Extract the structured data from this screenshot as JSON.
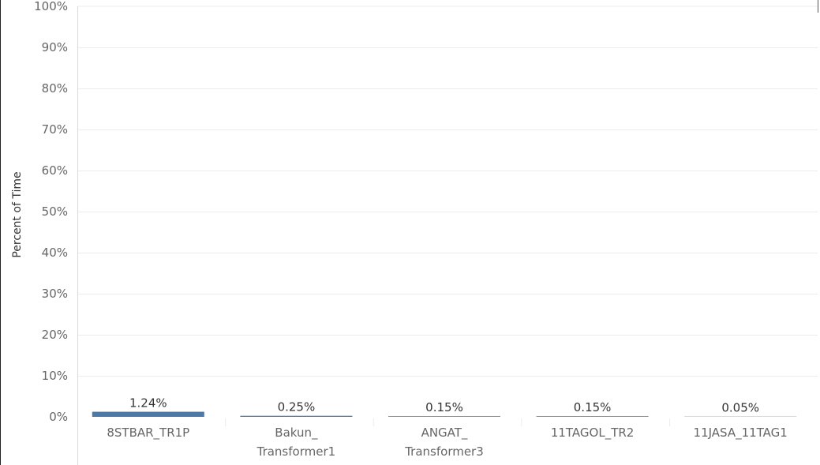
{
  "chart_data": {
    "type": "bar",
    "categories": [
      [
        "8STBAR_TR1P"
      ],
      [
        "Bakun_",
        "Transformer1"
      ],
      [
        "ANGAT_",
        "Transformer3"
      ],
      [
        "11TAGOL_TR2"
      ],
      [
        "11JASA_11TAG1"
      ]
    ],
    "values": [
      1.24,
      0.25,
      0.15,
      0.15,
      0.05
    ],
    "data_labels": [
      "1.24%",
      "0.25%",
      "0.15%",
      "0.15%",
      "0.05%"
    ],
    "ylabel": "Percent of Time",
    "xlabel": "",
    "ylim": [
      0,
      100
    ],
    "y_ticks": [
      0,
      10,
      20,
      30,
      40,
      50,
      60,
      70,
      80,
      90,
      100
    ],
    "y_tick_labels": [
      "0%",
      "10%",
      "20%",
      "30%",
      "40%",
      "50%",
      "60%",
      "70%",
      "80%",
      "90%",
      "100%"
    ],
    "grid": true,
    "legend": "none",
    "colors": {
      "bar": "#4e79a7",
      "grid": "#ececec",
      "axis": "#d9d9d9"
    }
  }
}
